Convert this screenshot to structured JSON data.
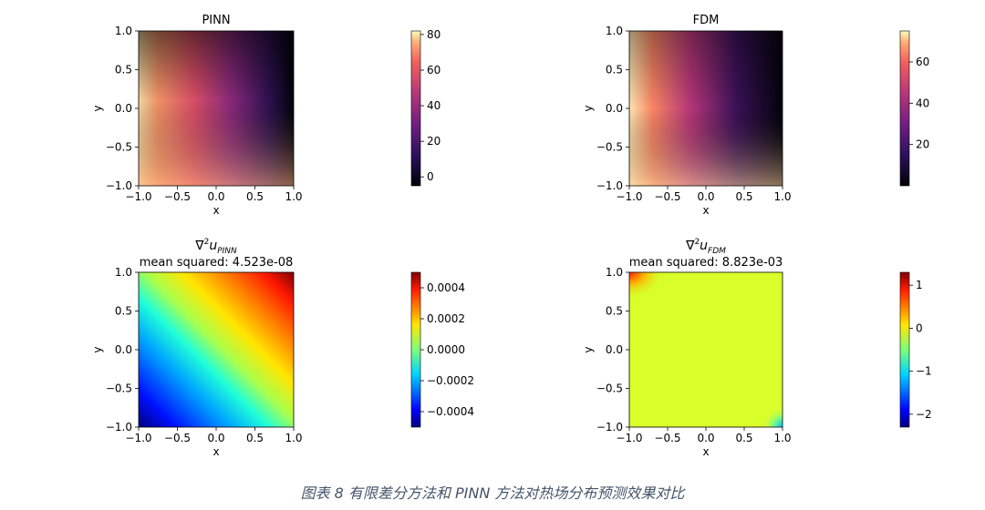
{
  "caption": "图表 8 有限差分方法和 PINN 方法对热场分布预测效果对比",
  "colors": {
    "pinn_bottom_left": "#fcb37c",
    "fdm_bottom_left": "#fcd59a",
    "error_colormap": "jet",
    "field_colormap": "magma"
  },
  "chart_data": [
    {
      "type": "heatmap",
      "title": "PINN",
      "subtitle": "",
      "xlabel": "x",
      "ylabel": "y",
      "xlim": [
        -1.0,
        1.0
      ],
      "ylim": [
        -1.0,
        1.0
      ],
      "xticks": [
        "−1.0",
        "−0.5",
        "0.0",
        "0.5",
        "1.0"
      ],
      "yticks": [
        "−1.0",
        "−0.5",
        "0.0",
        "0.5",
        "1.0"
      ],
      "colormap": "magma",
      "colorbar": {
        "range": [
          -5,
          82
        ],
        "ticks": [
          80,
          60,
          40,
          20,
          0
        ],
        "tick_labels": [
          "80",
          "60",
          "40",
          "20",
          "0"
        ]
      },
      "corner_values": {
        "left_edge": 82,
        "top_right": -5,
        "bottom_right": 40,
        "center": 30
      }
    },
    {
      "type": "heatmap",
      "title": "FDM",
      "subtitle": "",
      "xlabel": "x",
      "ylabel": "y",
      "xlim": [
        -1.0,
        1.0
      ],
      "ylim": [
        -1.0,
        1.0
      ],
      "xticks": [
        "−1.0",
        "−0.5",
        "0.0",
        "0.5",
        "1.0"
      ],
      "yticks": [
        "−1.0",
        "−0.5",
        "0.0",
        "0.5",
        "1.0"
      ],
      "colormap": "magma",
      "colorbar": {
        "range": [
          0,
          75
        ],
        "ticks": [
          60,
          40,
          20
        ],
        "tick_labels": [
          "60",
          "40",
          "20"
        ]
      },
      "corner_values": {
        "left_edge": 75,
        "top_right": 0,
        "bottom_right": 0,
        "center": 25
      }
    },
    {
      "type": "heatmap",
      "title": "∇²u_PINN",
      "title_base": "∇",
      "title_sup": "2",
      "title_var": "u",
      "title_sub": "PINN",
      "subtitle": "mean squared:  4.523e-08",
      "xlabel": "x",
      "ylabel": "y",
      "xlim": [
        -1.0,
        1.0
      ],
      "ylim": [
        -1.0,
        1.0
      ],
      "xticks": [
        "−1.0",
        "−0.5",
        "0.0",
        "0.5",
        "1.0"
      ],
      "yticks": [
        "−1.0",
        "−0.5",
        "0.0",
        "0.5",
        "1.0"
      ],
      "colormap": "jet",
      "colorbar": {
        "range": [
          -0.0005,
          0.0005
        ],
        "ticks": [
          0.0004,
          0.0002,
          0.0,
          -0.0002,
          -0.0004
        ],
        "tick_labels": [
          "0.0004",
          "0.0002",
          "0.0000",
          "−0.0002",
          "−0.0004"
        ]
      },
      "corner_values": {
        "bottom_left": -0.0005,
        "top_right": 0.0005
      }
    },
    {
      "type": "heatmap",
      "title": "∇²u_FDM",
      "title_base": "∇",
      "title_sup": "2",
      "title_var": "u",
      "title_sub": "FDM",
      "subtitle": "mean squared:  8.823e-03",
      "xlabel": "x",
      "ylabel": "y",
      "xlim": [
        -1.0,
        1.0
      ],
      "ylim": [
        -1.0,
        1.0
      ],
      "xticks": [
        "−1.0",
        "−0.5",
        "0.0",
        "0.5",
        "1.0"
      ],
      "yticks": [
        "−1.0",
        "−0.5",
        "0.0",
        "0.5",
        "1.0"
      ],
      "colormap": "jet",
      "colorbar": {
        "range": [
          -2.3,
          1.3
        ],
        "ticks": [
          1,
          0,
          -1,
          -2
        ],
        "tick_labels": [
          "1",
          "0",
          "−1",
          "−2"
        ]
      },
      "corner_values": {
        "interior": 0.0,
        "top_left": 1.3,
        "bottom_right": -1.0
      }
    }
  ]
}
